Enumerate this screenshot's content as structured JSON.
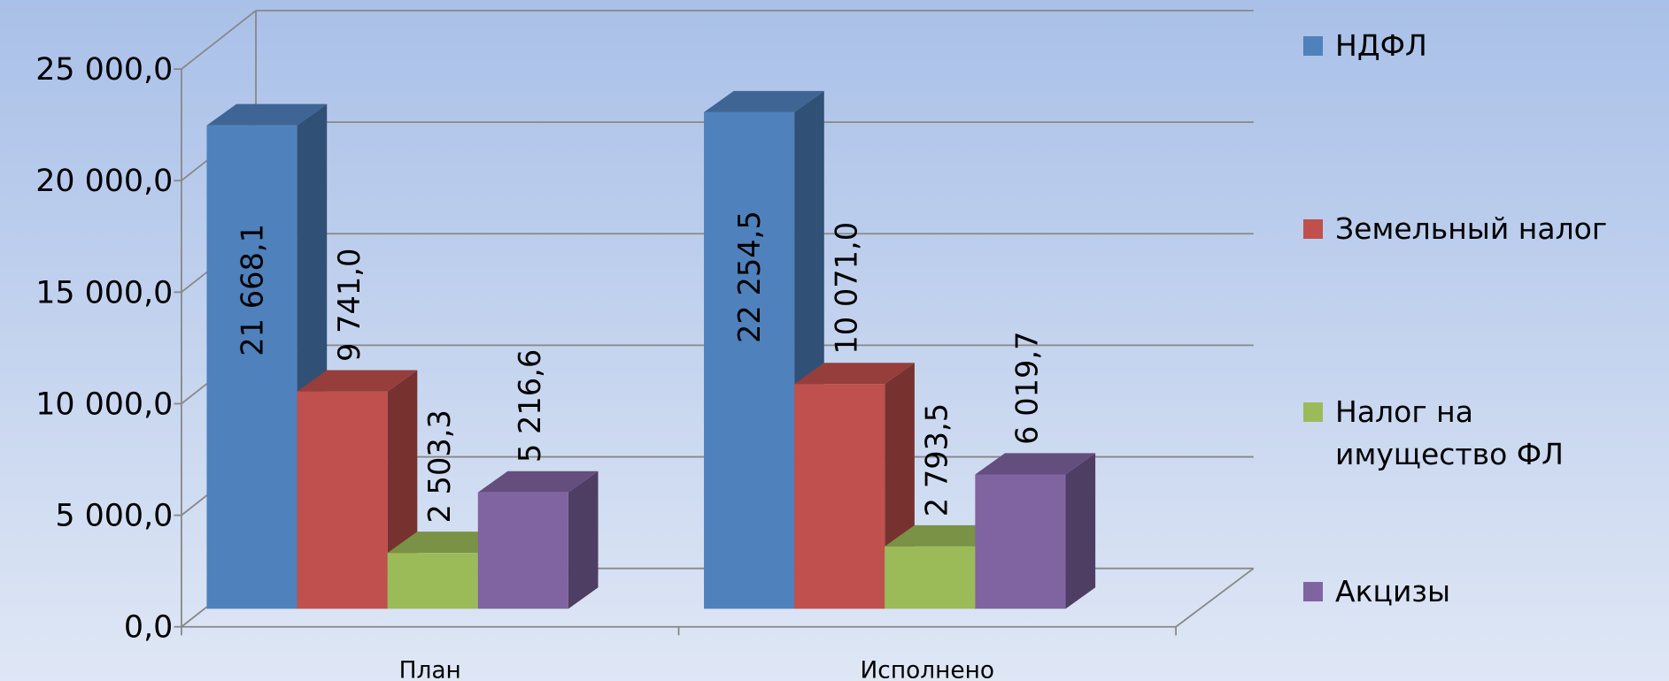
{
  "chart_data": {
    "type": "bar3d",
    "categories": [
      "План",
      "Исполнено"
    ],
    "series": [
      {
        "name": "НДФЛ",
        "color": "#4f81bd",
        "values": [
          21668.1,
          22254.5
        ],
        "value_labels": [
          "21 668,1",
          "22 254,5"
        ]
      },
      {
        "name": "Земельный налог",
        "color": "#c0504d",
        "values": [
          9741.0,
          10071.0
        ],
        "value_labels": [
          "9 741,0",
          "10 071,0"
        ]
      },
      {
        "name": "Налог на имущество ФЛ",
        "color": "#9bbb59",
        "values": [
          2503.3,
          2793.5
        ],
        "value_labels": [
          "2 503,3",
          "2 793,5"
        ]
      },
      {
        "name": "Акцизы",
        "color": "#8064a2",
        "values": [
          5216.6,
          6019.7
        ],
        "value_labels": [
          "5 216,6",
          "6 019,7"
        ]
      }
    ],
    "ylim": [
      0,
      25000
    ],
    "yticks": [
      {
        "value": 0,
        "label": "0,0"
      },
      {
        "value": 5000,
        "label": "5 000,0"
      },
      {
        "value": 10000,
        "label": "10 000,0"
      },
      {
        "value": 15000,
        "label": "15 000,0"
      },
      {
        "value": 20000,
        "label": "20 000,0"
      },
      {
        "value": 25000,
        "label": "25 000,0"
      }
    ],
    "grid": true,
    "legend": "right"
  }
}
